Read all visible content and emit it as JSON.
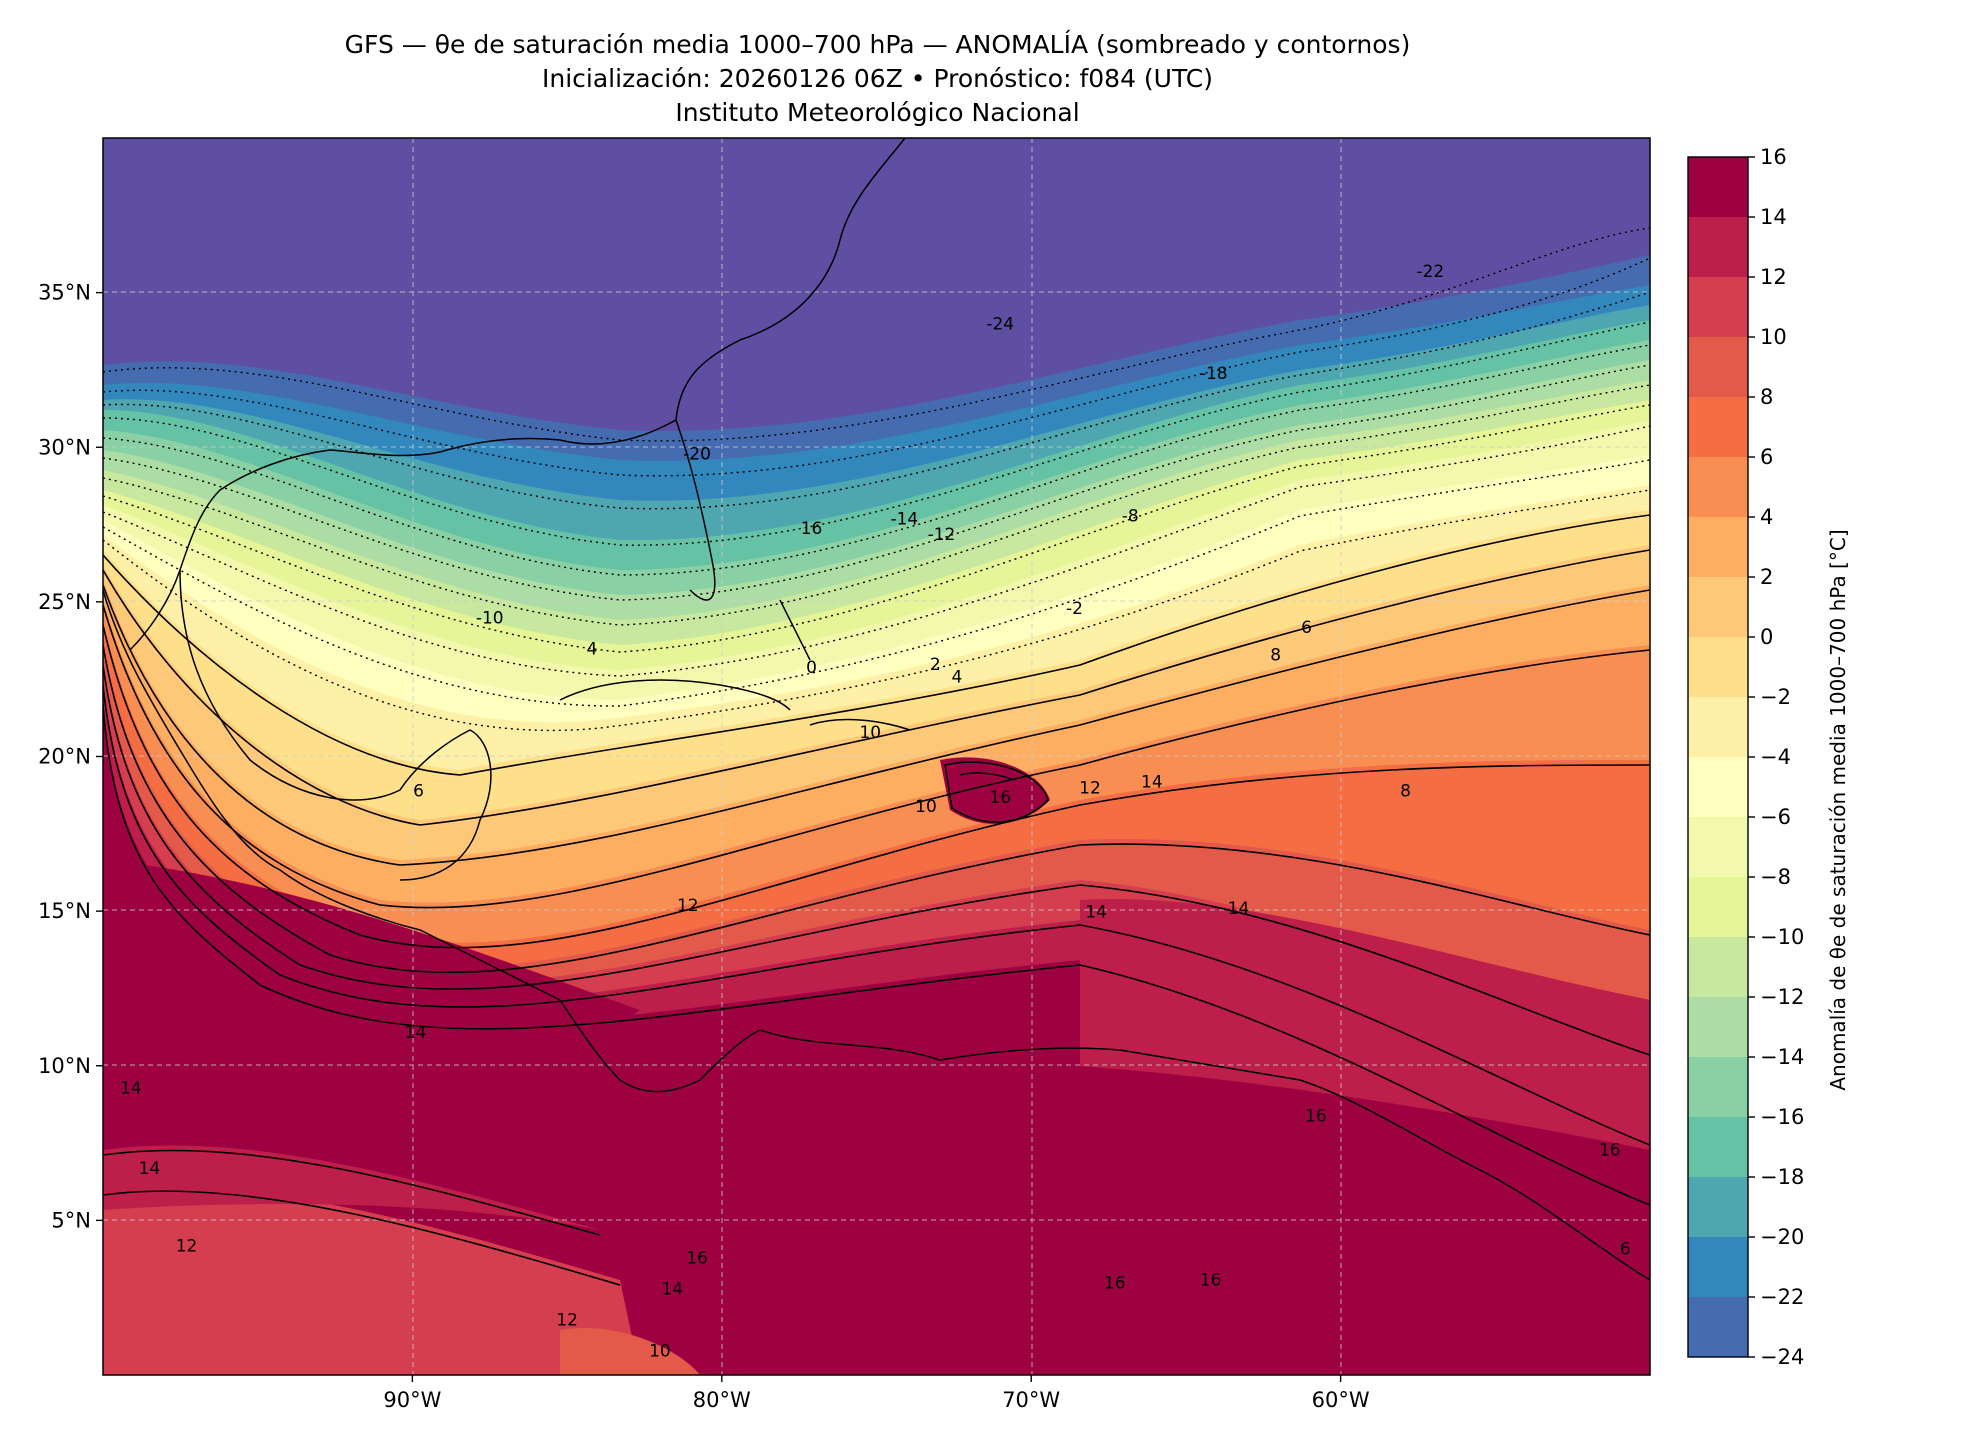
{
  "header": {
    "title_line1": "GFS — θe de saturación media 1000–700 hPa — ANOMALÍA (sombreado y contornos)",
    "title_line2": "Inicialización: 20260126 06Z   •   Pronóstico: f084 (UTC)",
    "title_line3": "Instituto Meteorológico Nacional"
  },
  "map": {
    "lon_range": [
      -100,
      -50
    ],
    "lat_range": [
      0,
      40
    ],
    "lat_ticks": [
      "35°N",
      "30°N",
      "25°N",
      "20°N",
      "15°N",
      "10°N",
      "5°N"
    ],
    "lat_tick_values": [
      35,
      30,
      25,
      20,
      15,
      10,
      5
    ],
    "lon_ticks": [
      "90°W",
      "80°W",
      "70°W",
      "60°W"
    ],
    "lon_tick_values": [
      -90,
      -80,
      -70,
      -60
    ],
    "gridlines": "dashed",
    "contour_labels": [
      {
        "text": "-24",
        "lon": -71.0,
        "lat": 33.8
      },
      {
        "text": "-22",
        "lon": -57.1,
        "lat": 35.5
      },
      {
        "text": "-18",
        "lon": -64.1,
        "lat": 32.2
      },
      {
        "text": "-20",
        "lon": -80.8,
        "lat": 29.6
      },
      {
        "text": "16",
        "lon": -77.1,
        "lat": 27.2
      },
      {
        "text": "-14",
        "lon": -74.1,
        "lat": 27.5
      },
      {
        "text": "-12",
        "lon": -72.9,
        "lat": 27.0
      },
      {
        "text": "-8",
        "lon": -66.8,
        "lat": 27.6
      },
      {
        "text": "-10",
        "lon": -87.5,
        "lat": 24.3
      },
      {
        "text": "-2",
        "lon": -68.6,
        "lat": 24.6
      },
      {
        "text": "4",
        "lon": -84.2,
        "lat": 23.3
      },
      {
        "text": "0",
        "lon": -77.1,
        "lat": 22.7
      },
      {
        "text": "2",
        "lon": -73.1,
        "lat": 22.8
      },
      {
        "text": "4",
        "lon": -72.4,
        "lat": 22.4
      },
      {
        "text": "6",
        "lon": -61.1,
        "lat": 24.0
      },
      {
        "text": "8",
        "lon": -62.1,
        "lat": 23.1
      },
      {
        "text": "10",
        "lon": -75.2,
        "lat": 20.6
      },
      {
        "text": "6",
        "lon": -89.8,
        "lat": 18.7
      },
      {
        "text": "14",
        "lon": -66.1,
        "lat": 19.0
      },
      {
        "text": "16",
        "lon": -71.0,
        "lat": 18.5
      },
      {
        "text": "10",
        "lon": -73.4,
        "lat": 18.2
      },
      {
        "text": "12",
        "lon": -68.1,
        "lat": 18.8
      },
      {
        "text": "12",
        "lon": -81.1,
        "lat": 15.0
      },
      {
        "text": "14",
        "lon": -67.9,
        "lat": 14.8
      },
      {
        "text": "14",
        "lon": -63.3,
        "lat": 14.9
      },
      {
        "text": "8",
        "lon": -57.9,
        "lat": 18.7
      },
      {
        "text": "14",
        "lon": -89.9,
        "lat": 10.9
      },
      {
        "text": "14",
        "lon": -99.1,
        "lat": 9.1
      },
      {
        "text": "14",
        "lon": -98.5,
        "lat": 6.5
      },
      {
        "text": "16",
        "lon": -60.8,
        "lat": 8.2
      },
      {
        "text": "16",
        "lon": -51.3,
        "lat": 7.1
      },
      {
        "text": "12",
        "lon": -97.3,
        "lat": 4.0
      },
      {
        "text": "16",
        "lon": -80.8,
        "lat": 3.6
      },
      {
        "text": "14",
        "lon": -81.6,
        "lat": 2.6
      },
      {
        "text": "12",
        "lon": -85.0,
        "lat": 1.6
      },
      {
        "text": "10",
        "lon": -82.0,
        "lat": 0.6
      },
      {
        "text": "16",
        "lon": -67.3,
        "lat": 2.8
      },
      {
        "text": "16",
        "lon": -64.2,
        "lat": 2.9
      },
      {
        "text": "6",
        "lon": -50.8,
        "lat": 3.9
      }
    ]
  },
  "colorbar": {
    "label": "Anomalía de θe de saturación media 1000–700 hPa [°C]",
    "ticks": [
      "16",
      "14",
      "12",
      "10",
      "8",
      "6",
      "4",
      "2",
      "0",
      "−2",
      "−4",
      "−6",
      "−8",
      "−10",
      "−12",
      "−14",
      "−16",
      "−18",
      "−20",
      "−22",
      "−24"
    ],
    "colors": [
      "#9e0142",
      "#be1e4a",
      "#d53e4f",
      "#e35a4a",
      "#f46d43",
      "#f88e52",
      "#fdae61",
      "#fdc878",
      "#fee08b",
      "#fef0a6",
      "#ffffbf",
      "#f2f9ac",
      "#e6f598",
      "#c7e89e",
      "#abdda4",
      "#89d0a4",
      "#66c2a5",
      "#4da6b0",
      "#3288bd",
      "#456cb1",
      "#5e4fa2"
    ]
  }
}
